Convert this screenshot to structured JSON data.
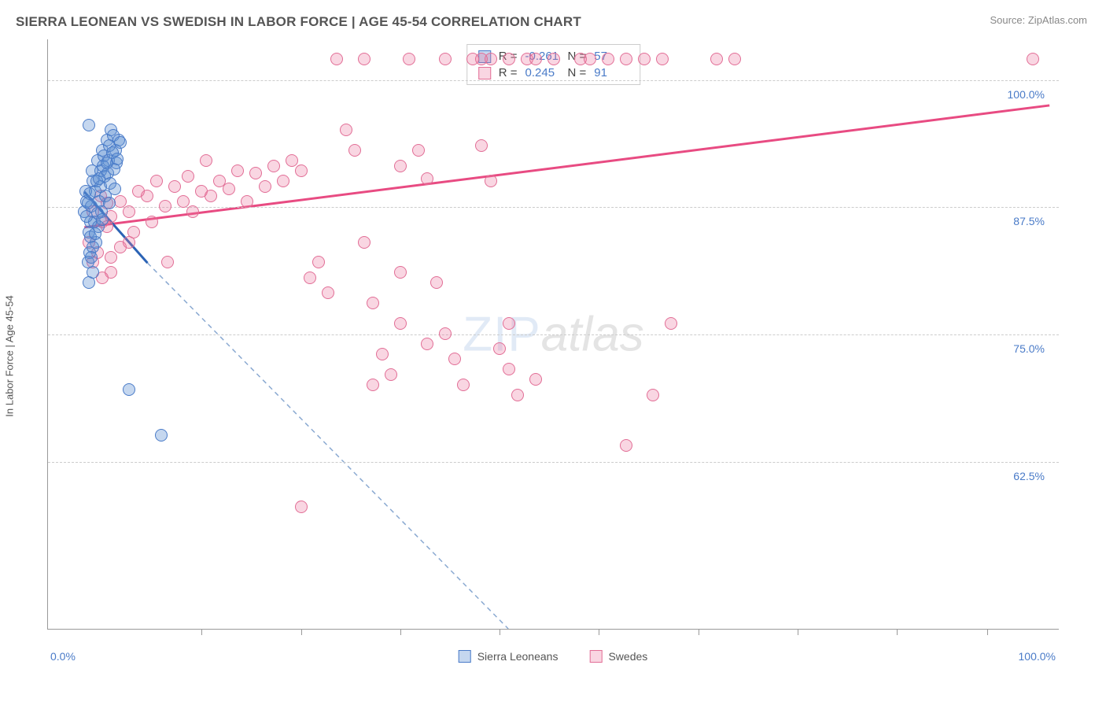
{
  "title": "SIERRA LEONEAN VS SWEDISH IN LABOR FORCE | AGE 45-54 CORRELATION CHART",
  "source": "Source: ZipAtlas.com",
  "y_axis_label": "In Labor Force | Age 45-54",
  "watermark": {
    "zip": "ZIP",
    "atlas": "atlas"
  },
  "colors": {
    "series_a_fill": "rgba(90,140,210,0.35)",
    "series_a_stroke": "#4a7bc8",
    "series_b_fill": "rgba(235,120,160,0.30)",
    "series_b_stroke": "#e26e96",
    "trend_a": "#2b63b5",
    "trend_a_dash": "#8aa9d1",
    "trend_b": "#e84b82",
    "grid": "#cccccc",
    "axis": "#999999",
    "tick_label": "#4a7bc8"
  },
  "axes": {
    "xlim": [
      -4,
      108
    ],
    "ylim": [
      46,
      104
    ],
    "y_ticks": [
      62.5,
      75.0,
      87.5,
      100.0
    ],
    "y_tick_labels": [
      "62.5%",
      "75.0%",
      "87.5%",
      "100.0%"
    ],
    "x_min_label": "0.0%",
    "x_max_label": "100.0%",
    "x_tick_positions": [
      13,
      24,
      35,
      46,
      57,
      68,
      79,
      90,
      100
    ]
  },
  "legend": {
    "series_a": "Sierra Leoneans",
    "series_b": "Swedes"
  },
  "stats": {
    "r_label": "R =",
    "n_label": "N =",
    "series_a": {
      "r": "-0.261",
      "n": "57"
    },
    "series_b": {
      "r": "0.245",
      "n": "91"
    }
  },
  "trend_lines": {
    "series_a_solid": {
      "x1": 0,
      "y1": 89,
      "x2": 7,
      "y2": 82
    },
    "series_a_dashed": {
      "x1": 7,
      "y1": 82,
      "x2": 47,
      "y2": 46
    },
    "series_b": {
      "x1": 0,
      "y1": 85.5,
      "x2": 107,
      "y2": 97.5
    }
  },
  "series_a_points": [
    [
      0,
      87
    ],
    [
      0.3,
      88
    ],
    [
      0.7,
      86
    ],
    [
      0.5,
      85
    ],
    [
      1,
      90
    ],
    [
      1.2,
      89
    ],
    [
      0.8,
      87.5
    ],
    [
      1.5,
      92
    ],
    [
      1.8,
      91
    ],
    [
      2,
      93
    ],
    [
      2.2,
      92.5
    ],
    [
      1.3,
      84
    ],
    [
      0.6,
      83
    ],
    [
      2.5,
      94
    ],
    [
      2.8,
      93.5
    ],
    [
      3,
      95
    ],
    [
      0.4,
      82
    ],
    [
      1.7,
      88
    ],
    [
      2.3,
      90.5
    ],
    [
      3.2,
      94.5
    ],
    [
      3.5,
      93
    ],
    [
      1.9,
      87
    ],
    [
      0.9,
      91
    ],
    [
      1.1,
      86
    ],
    [
      2.7,
      92
    ],
    [
      3.8,
      94
    ],
    [
      0.2,
      89
    ],
    [
      1.4,
      90
    ],
    [
      2.1,
      91.5
    ],
    [
      0.7,
      84.5
    ],
    [
      1.6,
      85.5
    ],
    [
      2.4,
      88.5
    ],
    [
      0.5,
      80
    ],
    [
      3.1,
      92.8
    ],
    [
      3.6,
      91.8
    ],
    [
      4,
      93.8
    ],
    [
      0.3,
      86.5
    ],
    [
      1.0,
      83.5
    ],
    [
      1.8,
      89.5
    ],
    [
      2.6,
      90.8
    ],
    [
      0.4,
      87.8
    ],
    [
      1.5,
      86.8
    ],
    [
      2.9,
      89.8
    ],
    [
      3.3,
      91.2
    ],
    [
      0.8,
      82.5
    ],
    [
      1.2,
      84.8
    ],
    [
      2.0,
      86.2
    ],
    [
      2.8,
      87.8
    ],
    [
      3.4,
      89.2
    ],
    [
      0.6,
      88.8
    ],
    [
      1.7,
      90.2
    ],
    [
      2.5,
      91.8
    ],
    [
      3.7,
      92.2
    ],
    [
      5,
      69.5
    ],
    [
      8.5,
      65
    ],
    [
      0.5,
      95.5
    ],
    [
      1.0,
      81
    ]
  ],
  "series_b_points": [
    [
      1,
      87
    ],
    [
      2,
      86
    ],
    [
      2.5,
      85.5
    ],
    [
      3,
      86.5
    ],
    [
      3,
      81
    ],
    [
      4,
      88
    ],
    [
      5,
      87
    ],
    [
      5.5,
      85
    ],
    [
      6,
      89
    ],
    [
      7,
      88.5
    ],
    [
      7.5,
      86
    ],
    [
      8,
      90
    ],
    [
      9,
      87.5
    ],
    [
      9.2,
      82
    ],
    [
      10,
      89.5
    ],
    [
      11,
      88
    ],
    [
      11.5,
      90.5
    ],
    [
      12,
      87
    ],
    [
      13,
      89
    ],
    [
      13.5,
      92
    ],
    [
      14,
      88.5
    ],
    [
      15,
      90
    ],
    [
      16,
      89.2
    ],
    [
      17,
      91
    ],
    [
      18,
      88
    ],
    [
      19,
      90.8
    ],
    [
      20,
      89.5
    ],
    [
      21,
      91.5
    ],
    [
      22,
      90
    ],
    [
      23,
      92
    ],
    [
      24,
      91
    ],
    [
      25,
      80.5
    ],
    [
      26,
      82
    ],
    [
      27,
      79
    ],
    [
      28,
      102
    ],
    [
      29,
      95
    ],
    [
      30,
      93
    ],
    [
      31,
      102
    ],
    [
      32,
      78
    ],
    [
      33,
      73
    ],
    [
      34,
      71
    ],
    [
      35,
      91.5
    ],
    [
      36,
      102
    ],
    [
      37,
      93
    ],
    [
      38,
      90.2
    ],
    [
      39,
      80
    ],
    [
      40,
      75
    ],
    [
      41,
      72.5
    ],
    [
      42,
      70
    ],
    [
      43,
      102
    ],
    [
      44,
      93.5
    ],
    [
      45,
      102
    ],
    [
      46,
      73.5
    ],
    [
      47,
      71.5
    ],
    [
      48,
      69
    ],
    [
      49,
      102
    ],
    [
      50,
      102
    ],
    [
      55,
      102
    ],
    [
      56,
      102
    ],
    [
      58,
      102
    ],
    [
      60,
      102
    ],
    [
      62,
      102
    ],
    [
      64,
      102
    ],
    [
      45,
      90
    ],
    [
      47,
      76
    ],
    [
      50,
      70.5
    ],
    [
      52,
      102
    ],
    [
      35,
      76
    ],
    [
      32,
      70
    ],
    [
      24,
      58
    ],
    [
      35,
      81
    ],
    [
      31,
      84
    ],
    [
      38,
      74
    ],
    [
      40,
      102
    ],
    [
      44,
      102
    ],
    [
      47,
      102
    ],
    [
      70,
      102
    ],
    [
      72,
      102
    ],
    [
      60,
      64
    ],
    [
      63,
      69
    ],
    [
      65,
      76
    ],
    [
      105,
      102
    ],
    [
      0.5,
      84
    ],
    [
      1.5,
      83
    ],
    [
      1,
      82
    ],
    [
      2,
      80.5
    ],
    [
      3,
      82.5
    ],
    [
      4,
      83.5
    ],
    [
      5,
      84
    ],
    [
      2.5,
      87.8
    ],
    [
      1.8,
      88.5
    ]
  ]
}
